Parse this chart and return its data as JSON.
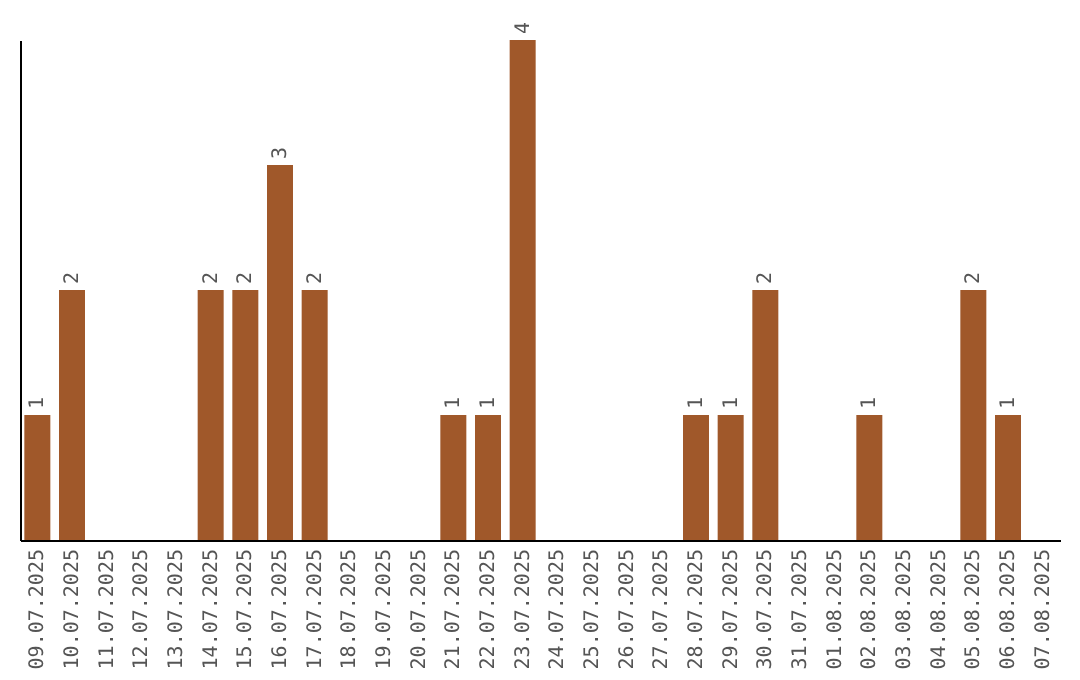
{
  "chart_data": {
    "type": "bar",
    "categories": [
      "09.07.2025",
      "10.07.2025",
      "11.07.2025",
      "12.07.2025",
      "13.07.2025",
      "14.07.2025",
      "15.07.2025",
      "16.07.2025",
      "17.07.2025",
      "18.07.2025",
      "19.07.2025",
      "20.07.2025",
      "21.07.2025",
      "22.07.2025",
      "23.07.2025",
      "24.07.2025",
      "25.07.2025",
      "26.07.2025",
      "27.07.2025",
      "28.07.2025",
      "29.07.2025",
      "30.07.2025",
      "31.07.2025",
      "01.08.2025",
      "02.08.2025",
      "03.08.2025",
      "04.08.2025",
      "05.08.2025",
      "06.08.2025",
      "07.08.2025"
    ],
    "values": [
      1,
      2,
      0,
      0,
      0,
      2,
      2,
      3,
      2,
      0,
      0,
      0,
      1,
      1,
      4,
      0,
      0,
      0,
      0,
      1,
      1,
      2,
      0,
      0,
      1,
      0,
      0,
      2,
      1,
      0
    ],
    "value_labels": [
      "1",
      "2",
      null,
      null,
      null,
      "2",
      "2",
      "3",
      "2",
      null,
      null,
      null,
      "1",
      "1",
      "4",
      null,
      null,
      null,
      null,
      "1",
      "1",
      "2",
      null,
      null,
      "1",
      null,
      null,
      "2",
      "1",
      null
    ],
    "color": "#a0582a",
    "ylim": [
      0,
      4
    ]
  }
}
